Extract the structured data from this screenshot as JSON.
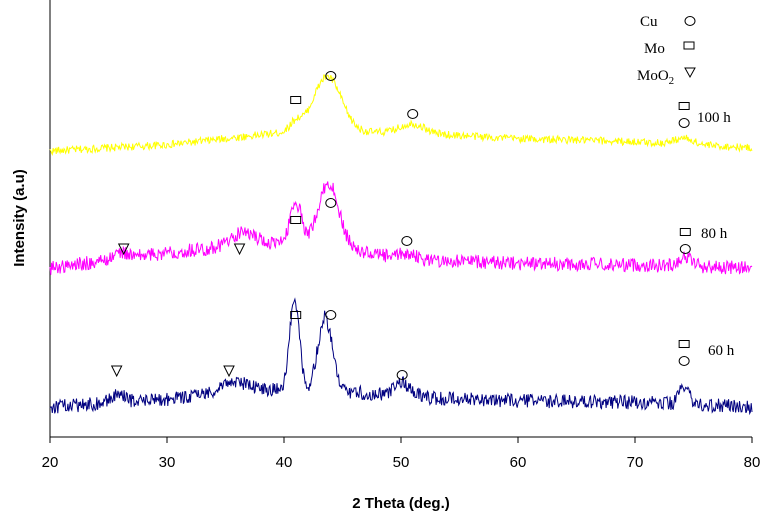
{
  "chart_data": {
    "type": "line",
    "xlabel": "2 Theta (deg.)",
    "ylabel": "Intensity (a.u)",
    "xlim": [
      20,
      80
    ],
    "xticks": [
      20,
      30,
      40,
      50,
      60,
      70,
      80
    ],
    "y_ticks_shown": false,
    "grid": false,
    "legend": {
      "placement": "top-right",
      "items": [
        {
          "label": "Cu",
          "marker": "circle"
        },
        {
          "label": "Mo",
          "marker": "square"
        },
        {
          "label": "MoO",
          "subscript": "2",
          "marker": "triangle-down"
        }
      ]
    },
    "series": [
      {
        "name": "100 h",
        "color": "#ffff00",
        "baseline_profile": [
          [
            20,
            0.0
          ],
          [
            30,
            0.04
          ],
          [
            40,
            0.12
          ],
          [
            45,
            0.12
          ],
          [
            50,
            0.12
          ],
          [
            60,
            0.08
          ],
          [
            70,
            0.06
          ],
          [
            80,
            0.02
          ]
        ],
        "peaks": [
          [
            41.0,
            0.06,
            0.5
          ],
          [
            43.7,
            0.36,
            1.2
          ],
          [
            51.0,
            0.06,
            1.0
          ],
          [
            74.2,
            0.04,
            0.8
          ]
        ],
        "noise": 0.025,
        "markers": [
          {
            "x": 41.0,
            "type": "square"
          },
          {
            "x": 44.0,
            "type": "circle"
          },
          {
            "x": 51.0,
            "type": "circle"
          },
          {
            "x": 74.2,
            "type": "square"
          },
          {
            "x": 74.2,
            "type": "circle"
          }
        ]
      },
      {
        "name": "80 h",
        "color": "#ff00ff",
        "baseline_profile": [
          [
            20,
            0.0
          ],
          [
            30,
            0.1
          ],
          [
            38,
            0.16
          ],
          [
            45,
            0.12
          ],
          [
            50,
            0.06
          ],
          [
            60,
            0.03
          ],
          [
            70,
            0.02
          ],
          [
            80,
            0.0
          ]
        ],
        "peaks": [
          [
            26.0,
            0.04,
            0.6
          ],
          [
            36.5,
            0.08,
            1.0
          ],
          [
            41.0,
            0.28,
            0.5
          ],
          [
            43.8,
            0.42,
            0.9
          ],
          [
            50.5,
            0.04,
            0.6
          ],
          [
            74.3,
            0.06,
            0.6
          ]
        ],
        "noise": 0.045,
        "markers": [
          {
            "x": 26.3,
            "type": "triangle-down"
          },
          {
            "x": 36.2,
            "type": "triangle-down"
          },
          {
            "x": 41.0,
            "type": "square"
          },
          {
            "x": 44.0,
            "type": "circle"
          },
          {
            "x": 50.5,
            "type": "circle"
          },
          {
            "x": 74.3,
            "type": "square"
          },
          {
            "x": 74.3,
            "type": "circle"
          }
        ]
      },
      {
        "name": "60 h",
        "color": "#000080",
        "baseline_profile": [
          [
            20,
            0.0
          ],
          [
            30,
            0.05
          ],
          [
            37,
            0.12
          ],
          [
            45,
            0.1
          ],
          [
            52,
            0.06
          ],
          [
            60,
            0.04
          ],
          [
            70,
            0.03
          ],
          [
            80,
            0.0
          ]
        ],
        "peaks": [
          [
            25.8,
            0.05,
            0.6
          ],
          [
            35.5,
            0.06,
            1.0
          ],
          [
            40.9,
            0.6,
            0.4
          ],
          [
            43.5,
            0.48,
            0.6
          ],
          [
            50.2,
            0.08,
            0.8
          ],
          [
            74.2,
            0.12,
            0.4
          ]
        ],
        "noise": 0.045,
        "markers": [
          {
            "x": 25.7,
            "type": "triangle-down"
          },
          {
            "x": 35.3,
            "type": "triangle-down"
          },
          {
            "x": 41.0,
            "type": "square"
          },
          {
            "x": 44.0,
            "type": "circle"
          },
          {
            "x": 50.1,
            "type": "circle"
          },
          {
            "x": 74.2,
            "type": "square"
          },
          {
            "x": 74.2,
            "type": "circle"
          }
        ]
      }
    ]
  }
}
